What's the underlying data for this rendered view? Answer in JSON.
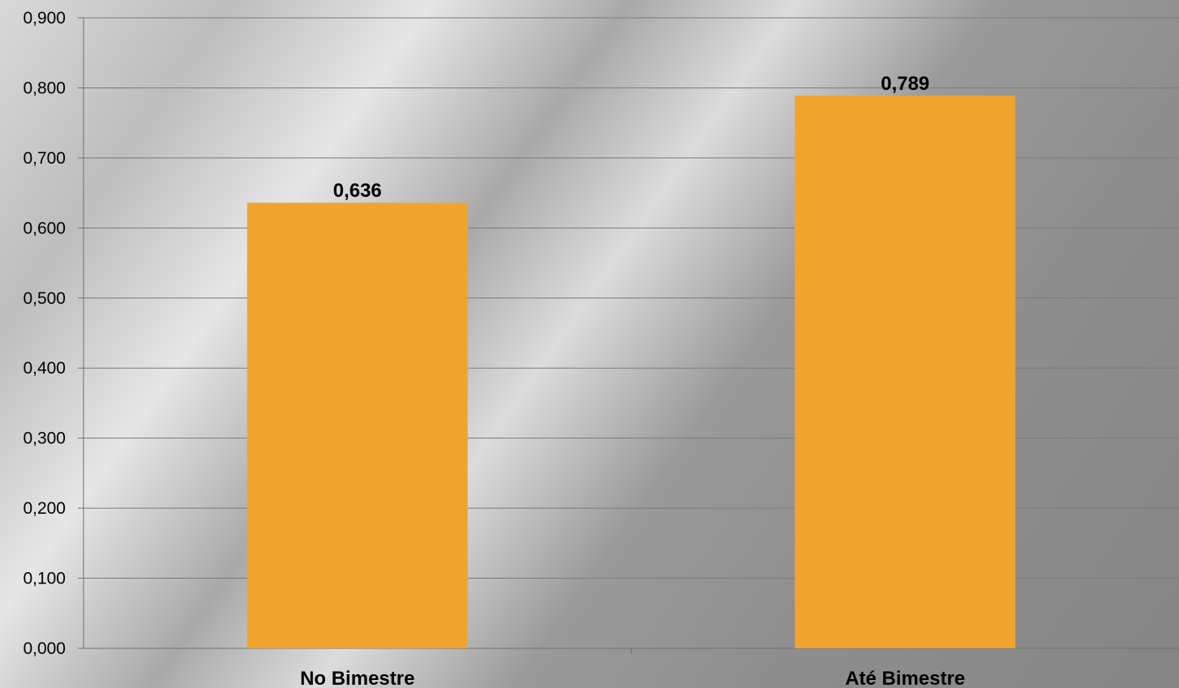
{
  "chart_data": {
    "type": "bar",
    "categories": [
      "No Bimestre",
      "Até Bimestre"
    ],
    "values": [
      0.636,
      0.789
    ],
    "data_labels": [
      "0,636",
      "0,789"
    ],
    "title": "",
    "xlabel": "",
    "ylabel": "",
    "ylim": [
      0,
      0.9
    ],
    "y_ticks": [
      "0,000",
      "0,100",
      "0,200",
      "0,300",
      "0,400",
      "0,500",
      "0,600",
      "0,700",
      "0,800",
      "0,900"
    ],
    "grid": true,
    "bar_color": "#F0A430"
  }
}
